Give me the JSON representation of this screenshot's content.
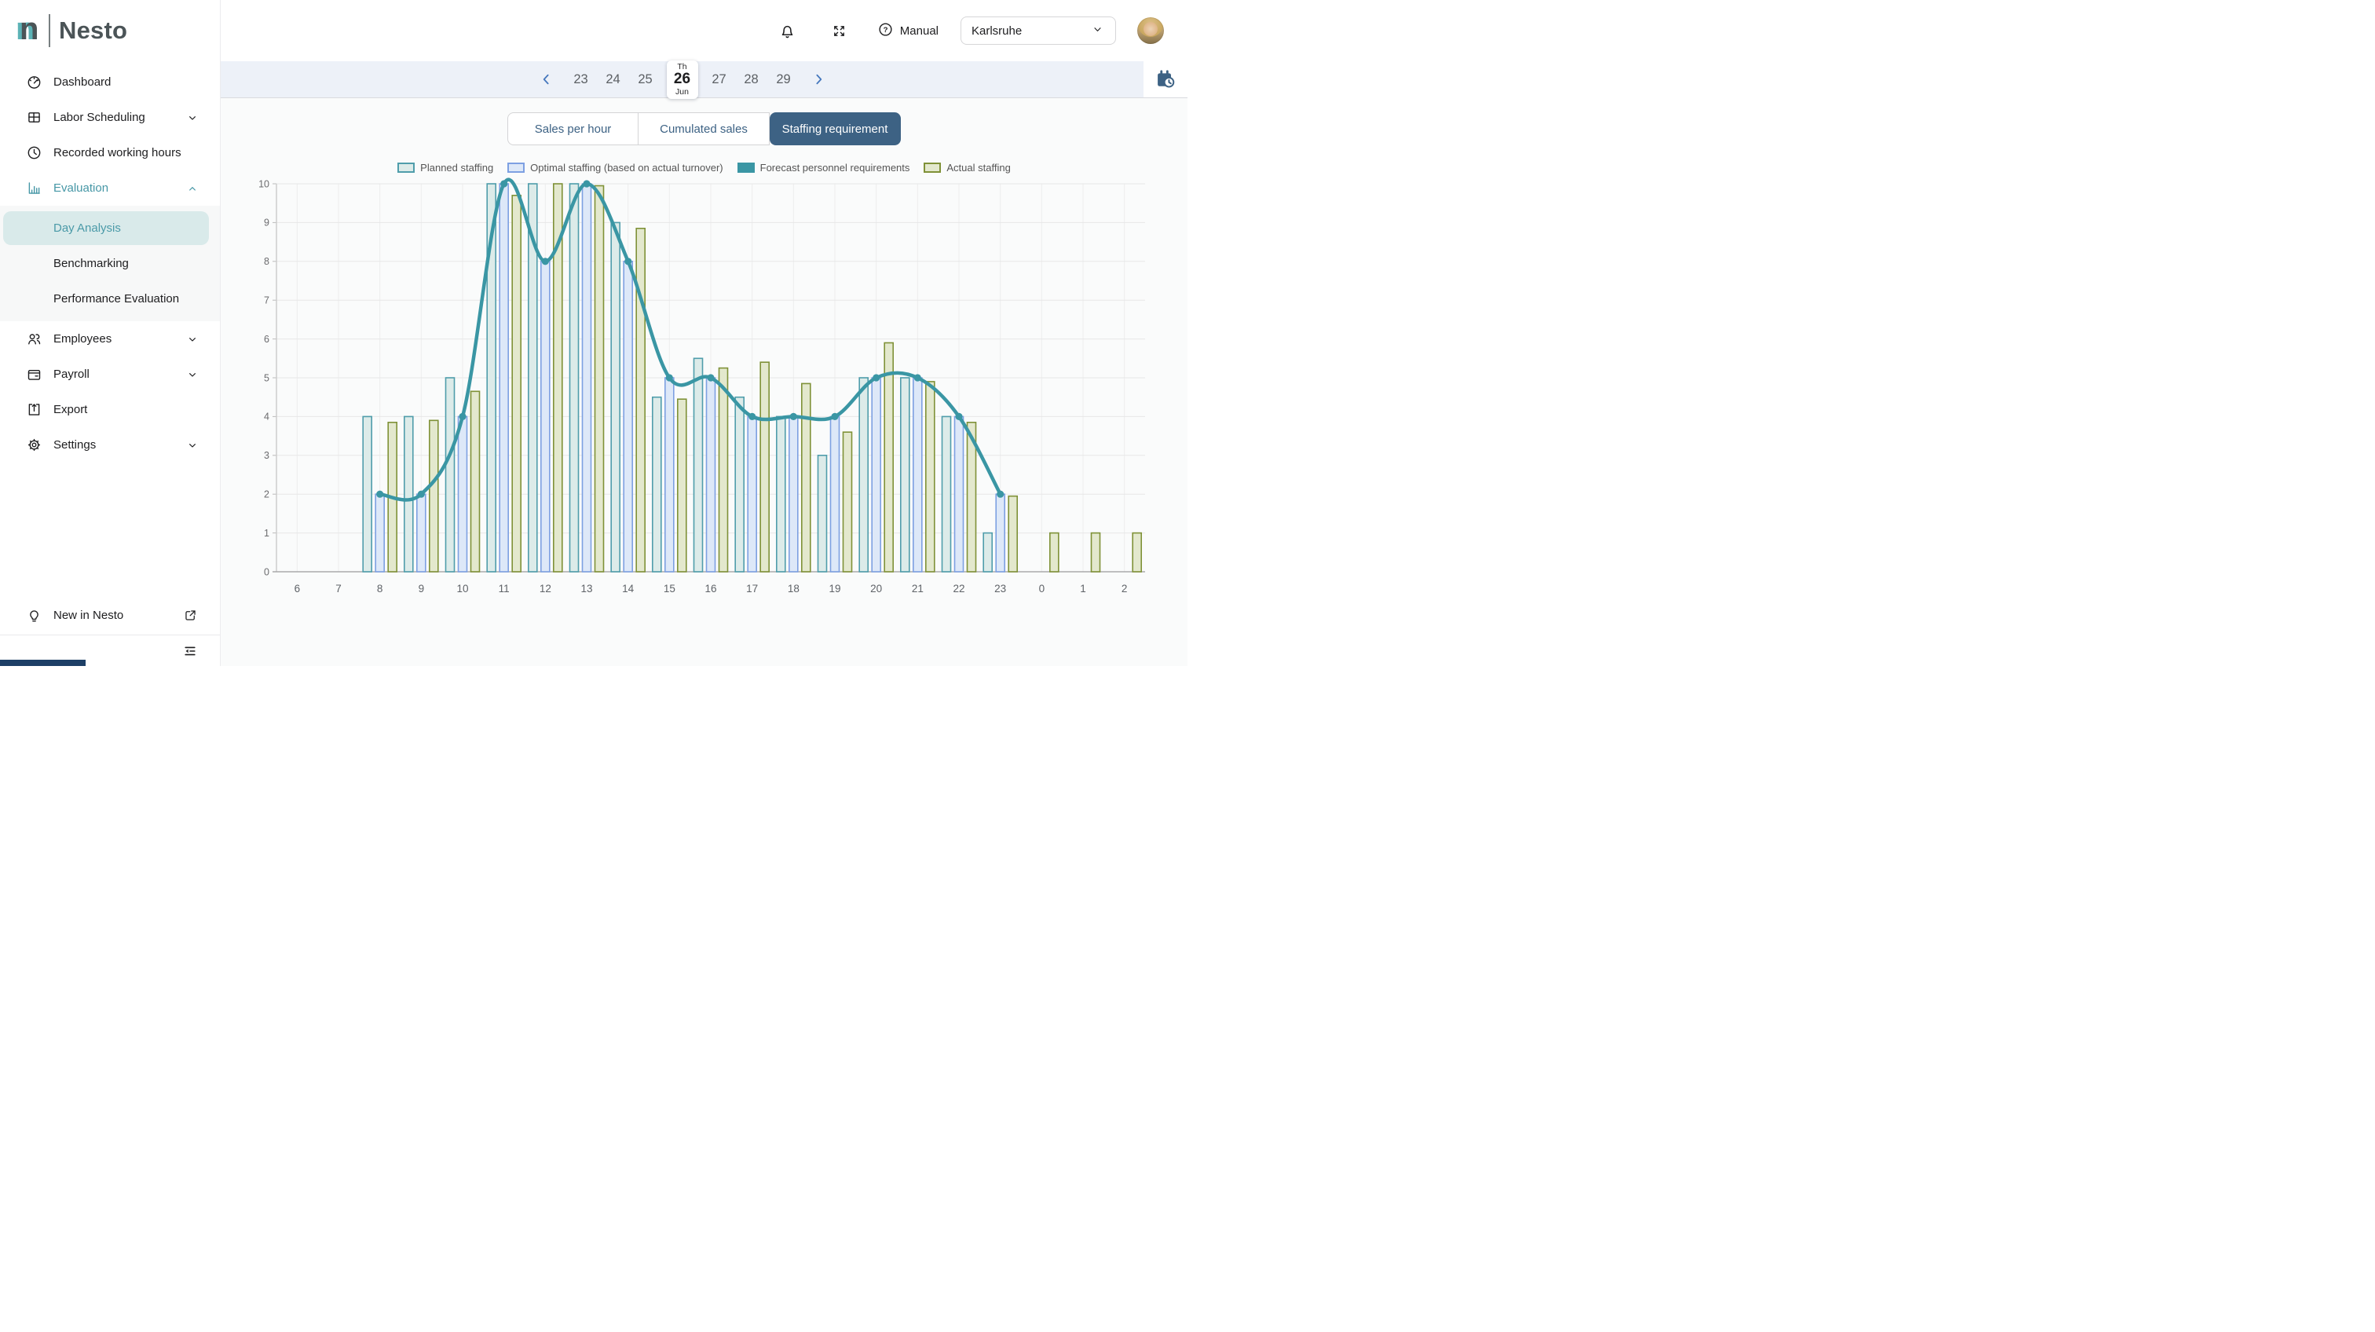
{
  "brand": {
    "name": "Nesto",
    "mark": "n"
  },
  "topbar": {
    "manual_label": "Manual",
    "location": "Karlsruhe"
  },
  "sidebar": {
    "nav_top": [
      {
        "label": "Dashboard",
        "icon": "dashboard"
      },
      {
        "label": "Labor Scheduling",
        "icon": "grid",
        "chevron": "down"
      },
      {
        "label": "Recorded working hours",
        "icon": "clock"
      },
      {
        "label": "Evaluation",
        "icon": "bar-chart",
        "chevron": "up",
        "active": true
      }
    ],
    "submenu": [
      {
        "label": "Day Analysis",
        "selected": true
      },
      {
        "label": "Benchmarking"
      },
      {
        "label": "Performance Evaluation"
      }
    ],
    "nav_bottom": [
      {
        "label": "Employees",
        "icon": "people",
        "chevron": "down"
      },
      {
        "label": "Payroll",
        "icon": "wallet",
        "chevron": "down"
      },
      {
        "label": "Export",
        "icon": "export"
      },
      {
        "label": "Settings",
        "icon": "gear",
        "chevron": "down"
      }
    ],
    "footer_label": "New in Nesto"
  },
  "datenav": {
    "days_before": [
      "23",
      "24",
      "25"
    ],
    "selected": {
      "weekday": "Th",
      "day": "26",
      "month": "Jun"
    },
    "days_after": [
      "27",
      "28",
      "29"
    ]
  },
  "tabs": [
    {
      "label": "Sales per hour"
    },
    {
      "label": "Cumulated sales"
    },
    {
      "label": "Staffing requirement",
      "selected": true
    }
  ],
  "colors": {
    "accent_teal": "#4697a6",
    "selected_pill_bg": "#d9eaea",
    "tab_slate": "#3d6284",
    "datebar_bg": "#edf1f8",
    "nav_chevron_blue": "#4678bd",
    "content_bg": "#fafbfb"
  },
  "chart_data": {
    "type": "bar+line",
    "title": "",
    "xlabel": "",
    "ylabel": "",
    "ylim": [
      0,
      10
    ],
    "y_ticks": [
      0,
      1,
      2,
      3,
      4,
      5,
      6,
      7,
      8,
      9,
      10
    ],
    "grid": true,
    "legend_position": "top",
    "categories": [
      "6",
      "7",
      "8",
      "9",
      "10",
      "11",
      "12",
      "13",
      "14",
      "15",
      "16",
      "17",
      "18",
      "19",
      "20",
      "21",
      "22",
      "23",
      "0",
      "1",
      "2"
    ],
    "series": [
      {
        "name": "Planned staffing",
        "type": "bar",
        "color_fill": "#dcebe9",
        "color_stroke": "#4f9dab",
        "values": [
          null,
          null,
          4,
          4,
          5,
          10,
          10,
          10,
          9,
          4.5,
          5.5,
          4.5,
          4,
          3,
          5,
          5,
          4,
          1,
          null,
          null,
          null
        ]
      },
      {
        "name": "Optimal staffing (based on actual turnover)",
        "type": "bar",
        "color_fill": "#dde8f8",
        "color_stroke": "#7da0e2",
        "values": [
          null,
          null,
          2,
          2,
          4,
          10,
          8,
          10,
          8,
          5,
          5,
          4,
          4,
          4,
          5,
          5,
          4,
          2,
          null,
          null,
          null
        ]
      },
      {
        "name": "Forecast personnel requirements",
        "type": "line",
        "color": "#3a96a4",
        "values": [
          null,
          null,
          2,
          2,
          4,
          10,
          8,
          10,
          8,
          5,
          5,
          4,
          4,
          4,
          5,
          5,
          4,
          2,
          null,
          null,
          null
        ]
      },
      {
        "name": "Actual staffing",
        "type": "bar",
        "color_fill": "#e3e8cd",
        "color_stroke": "#7f9137",
        "values": [
          null,
          null,
          3.85,
          3.9,
          4.65,
          9.7,
          10,
          9.95,
          8.85,
          4.45,
          5.25,
          5.4,
          4.85,
          3.6,
          5.9,
          4.9,
          3.85,
          1.95,
          1,
          1,
          1
        ]
      }
    ]
  }
}
